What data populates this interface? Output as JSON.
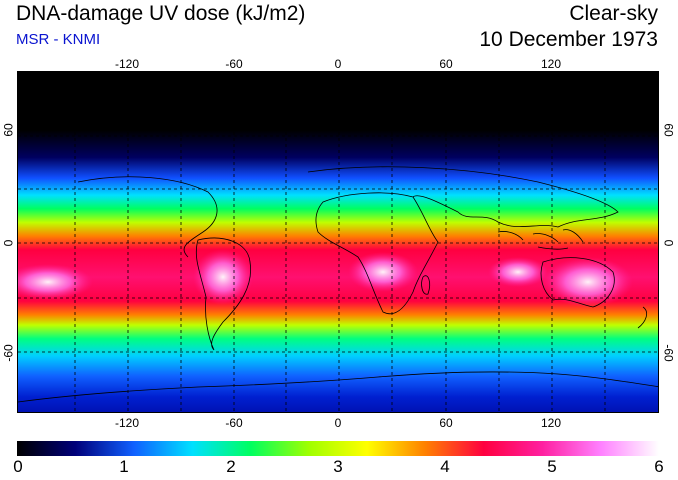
{
  "header": {
    "title": "DNA-damage UV dose (kJ/m2)",
    "source": "MSR - KNMI",
    "sky_condition": "Clear-sky",
    "date": "10 December 1973"
  },
  "colors": {
    "source_text": "#0a14d0",
    "grid": "#000000"
  },
  "longitude_ticks": [
    "-120",
    "-60",
    "0",
    "60",
    "120"
  ],
  "latitude_ticks": [
    "60",
    "0",
    "-60"
  ],
  "colorbar": {
    "labels": [
      "0",
      "1",
      "2",
      "3",
      "4",
      "5",
      "6"
    ],
    "stops": [
      "#000000",
      "#00007a",
      "#1060ff",
      "#00e0ff",
      "#00ff60",
      "#a0ff00",
      "#ffff00",
      "#ff8000",
      "#ff0040",
      "#ff20a0",
      "#ff80ff",
      "#ffffff"
    ],
    "min": 0,
    "max": 6
  }
}
